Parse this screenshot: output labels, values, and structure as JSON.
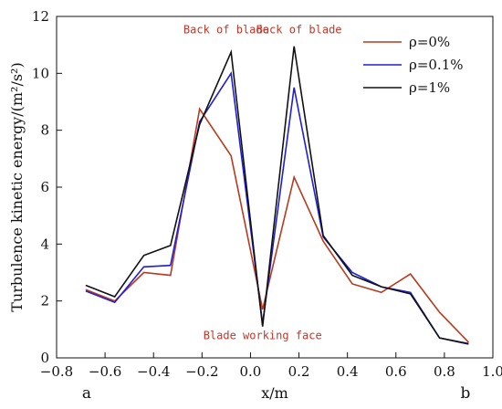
{
  "chart_data": {
    "type": "line",
    "xlabel": "x/m",
    "ylabel": "Turbulence kinetic energy/(m²/s²)",
    "xlim": [
      -0.8,
      1.0
    ],
    "ylim": [
      0,
      12
    ],
    "xticks": [
      "-0.8",
      "-0.6",
      "-0.4",
      "-0.2",
      "0.0",
      "0.2",
      "0.4",
      "0.6",
      "0.8",
      "1.0"
    ],
    "yticks": [
      "0",
      "2",
      "4",
      "6",
      "8",
      "10",
      "12"
    ],
    "x": [
      -0.68,
      -0.56,
      -0.44,
      -0.33,
      -0.21,
      -0.08,
      0.05,
      0.18,
      0.3,
      0.42,
      0.54,
      0.66,
      0.78,
      0.9
    ],
    "series": [
      {
        "name": "ρ=0%",
        "color": "#b83a1e",
        "values": [
          2.4,
          2.0,
          3.0,
          2.9,
          8.75,
          7.1,
          1.7,
          6.35,
          4.1,
          2.6,
          2.3,
          2.95,
          1.6,
          0.55
        ]
      },
      {
        "name": "ρ=0.1%",
        "color": "#1f1fd6",
        "values": [
          2.35,
          1.95,
          3.2,
          3.25,
          8.3,
          10.0,
          1.2,
          9.5,
          4.25,
          3.0,
          2.5,
          2.3,
          0.7,
          0.48
        ]
      },
      {
        "name": "ρ=1%",
        "color": "#111111",
        "values": [
          2.55,
          2.15,
          3.6,
          3.95,
          8.2,
          10.75,
          1.1,
          10.95,
          4.3,
          2.9,
          2.5,
          2.25,
          0.7,
          0.5
        ]
      }
    ],
    "annotations": [
      {
        "text": "Back of blade",
        "x": -0.1,
        "y": 11.4
      },
      {
        "text": "Back of blade",
        "x": 0.2,
        "y": 11.4
      },
      {
        "text": "Blade working face",
        "x": 0.05,
        "y": 0.65
      }
    ],
    "corner_labels": {
      "left": "a",
      "right": "b"
    },
    "legend_position": "top-right",
    "grid": false
  }
}
